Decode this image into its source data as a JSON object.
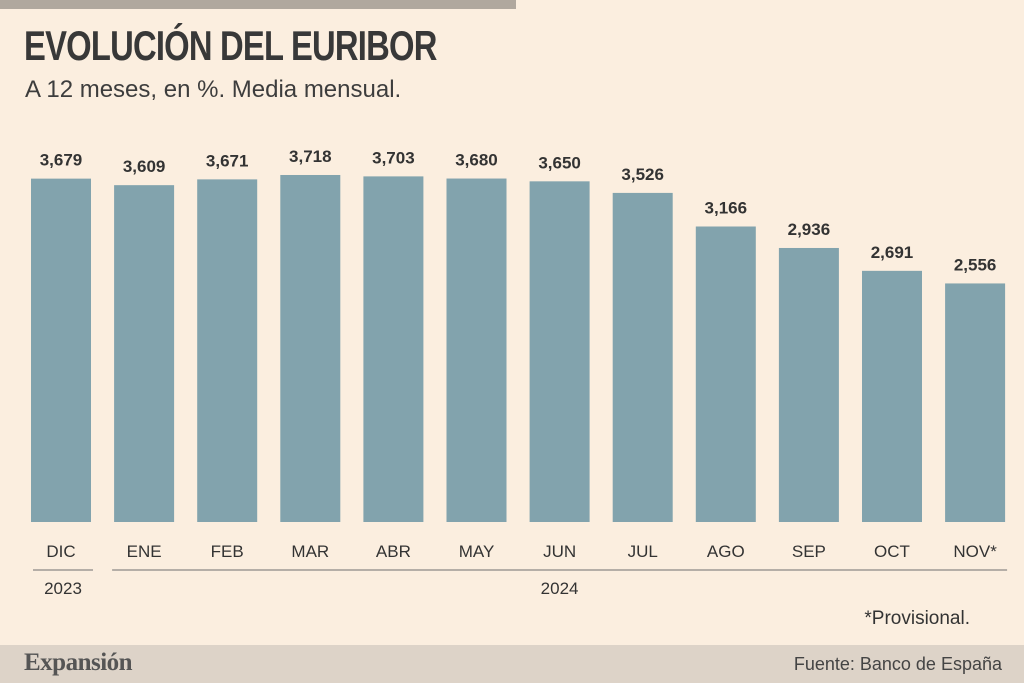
{
  "header": {
    "title": "EVOLUCIÓN DEL EURIBOR",
    "subtitle": "A 12 meses, en %. Media mensual."
  },
  "footnote": "*Provisional.",
  "footer": {
    "brand": "Expansión",
    "source": "Fuente: Banco de España"
  },
  "colors": {
    "background": "#fbeedf",
    "bar": "#82a3ad",
    "footer_band": "#ddd3c8"
  },
  "chart_data": {
    "type": "bar",
    "title": "EVOLUCIÓN DEL EURIBOR",
    "subtitle": "A 12 meses, en %. Media mensual.",
    "categories": [
      "DIC",
      "ENE",
      "FEB",
      "MAR",
      "ABR",
      "MAY",
      "JUN",
      "JUL",
      "AGO",
      "SEP",
      "OCT",
      "NOV*"
    ],
    "values": [
      3.679,
      3.609,
      3.671,
      3.718,
      3.703,
      3.68,
      3.65,
      3.526,
      3.166,
      2.936,
      2.691,
      2.556
    ],
    "value_labels": [
      "3,679",
      "3,609",
      "3,671",
      "3,718",
      "3,703",
      "3,680",
      "3,650",
      "3,526",
      "3,166",
      "2,936",
      "2,691",
      "2,556"
    ],
    "year_groups": [
      {
        "label": "2023",
        "from": 0,
        "to": 0
      },
      {
        "label": "2024",
        "from": 1,
        "to": 11
      }
    ],
    "ylim": [
      0,
      3.9
    ],
    "grid": false,
    "legend": "none"
  }
}
